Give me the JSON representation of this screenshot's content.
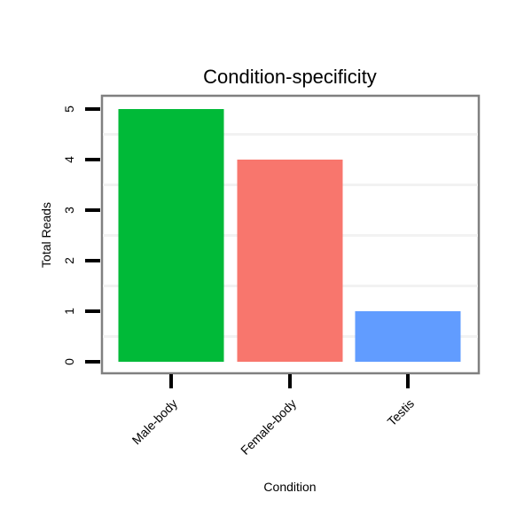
{
  "chart_data": {
    "type": "bar",
    "title": "Condition-specificity",
    "xlabel": "Condition",
    "ylabel": "Total Reads",
    "categories": [
      "Male-body",
      "Female-body",
      "Testis"
    ],
    "values": [
      5,
      4,
      1
    ],
    "colors": [
      "#00BA38",
      "#F8766D",
      "#619CFF"
    ],
    "ylim": [
      0,
      5
    ],
    "yticks": [
      "0",
      "1",
      "2",
      "3",
      "4",
      "5"
    ],
    "grid": "minor",
    "legend": "none"
  }
}
